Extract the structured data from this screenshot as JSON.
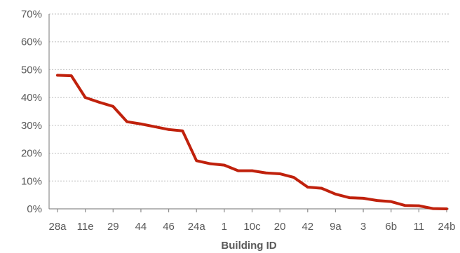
{
  "chart_data": {
    "type": "line",
    "xlabel": "Building ID",
    "ylabel": "",
    "ylim": [
      0,
      70
    ],
    "y_tick_values": [
      0,
      10,
      20,
      30,
      40,
      50,
      60,
      70
    ],
    "y_tick_labels": [
      "0%",
      "10%",
      "20%",
      "30%",
      "40%",
      "50%",
      "60%",
      "70%"
    ],
    "grid": true,
    "x_tick_labels": [
      "28a",
      "11e",
      "29",
      "44",
      "46",
      "24a",
      "1",
      "10c",
      "20",
      "42",
      "9a",
      "3",
      "6b",
      "11",
      "24b"
    ],
    "labeled_point_indices": [
      0,
      2,
      4,
      6,
      8,
      10,
      12,
      14,
      16,
      18,
      20,
      22,
      24,
      26,
      28
    ],
    "series": [
      {
        "color": "#c0210c",
        "values": [
          48,
          47.8,
          40,
          38.3,
          36.8,
          31.3,
          30.5,
          29.5,
          28.5,
          28,
          17.3,
          16.2,
          15.7,
          13.7,
          13.7,
          12.9,
          12.6,
          11.3,
          7.8,
          7.4,
          5.3,
          4,
          3.8,
          3,
          2.6,
          1.2,
          1.1,
          0.1,
          0
        ]
      }
    ]
  }
}
